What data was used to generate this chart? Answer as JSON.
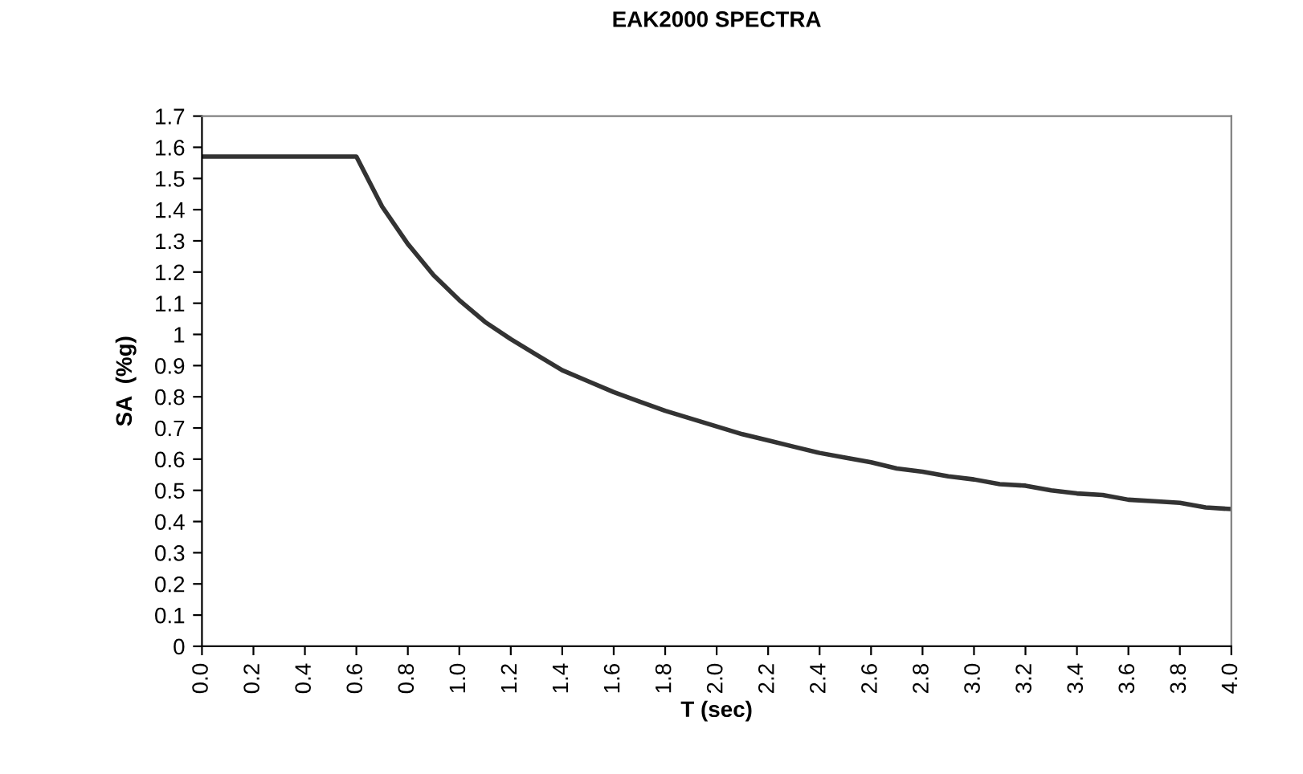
{
  "chart_data": {
    "type": "line",
    "title": "EAK2000 SPECTRA",
    "xlabel": "T (sec)",
    "ylabel": "SA  (%g)",
    "x": [
      0,
      0.6,
      0.7,
      0.8,
      0.9,
      1.0,
      1.1,
      1.2,
      1.3,
      1.4,
      1.5,
      1.6,
      1.7,
      1.8,
      1.9,
      2.0,
      2.1,
      2.2,
      2.3,
      2.4,
      2.5,
      2.6,
      2.7,
      2.8,
      2.9,
      3.0,
      3.1,
      3.2,
      3.3,
      3.4,
      3.5,
      3.6,
      3.7,
      3.8,
      3.9,
      4.0
    ],
    "series": [
      {
        "color": "#333333",
        "values": [
          1.57,
          1.57,
          1.41,
          1.29,
          1.19,
          1.11,
          1.04,
          0.985,
          0.935,
          0.885,
          0.85,
          0.815,
          0.785,
          0.755,
          0.73,
          0.705,
          0.68,
          0.66,
          0.64,
          0.62,
          0.605,
          0.59,
          0.57,
          0.56,
          0.545,
          0.535,
          0.52,
          0.515,
          0.5,
          0.49,
          0.485,
          0.47,
          0.465,
          0.46,
          0.445,
          0.44
        ]
      }
    ],
    "xlim": [
      0,
      4
    ],
    "xticks": [
      {
        "value": 0,
        "label": "0.0"
      },
      0.2,
      0.4,
      0.6,
      0.8,
      {
        "value": 1,
        "label": "1.0"
      },
      1.2,
      1.4,
      1.6,
      1.8,
      {
        "value": 2,
        "label": "2.0"
      },
      2.2,
      2.4,
      2.6,
      2.8,
      {
        "value": 3,
        "label": "3.0"
      },
      3.2,
      3.4,
      3.6,
      3.8,
      {
        "value": 4,
        "label": "4.0"
      }
    ],
    "ylim": [
      0,
      1.7
    ],
    "yticks": [
      0,
      0.1,
      0.2,
      0.3,
      0.4,
      0.5,
      0.6,
      0.7,
      0.8,
      0.9,
      1,
      1.1,
      1.2,
      1.3,
      1.4,
      1.5,
      1.6,
      1.7
    ],
    "grid": false,
    "marker": "none",
    "line_style": "solid"
  }
}
